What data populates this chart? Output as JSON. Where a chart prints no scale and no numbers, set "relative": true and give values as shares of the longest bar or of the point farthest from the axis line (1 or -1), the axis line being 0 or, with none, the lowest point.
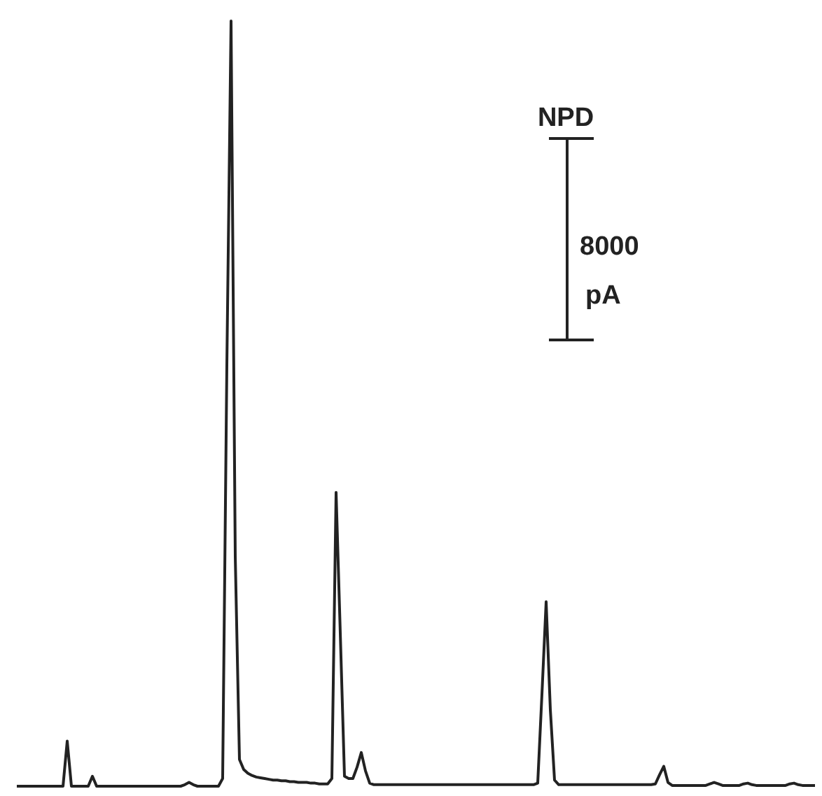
{
  "chart_data": {
    "type": "line",
    "relative": true,
    "color": "#222222",
    "annotations": [
      "NPD",
      "8000",
      "pA"
    ],
    "categories": [
      null,
      null,
      null,
      null,
      null,
      null,
      null,
      null,
      null,
      null,
      null,
      null,
      null,
      null,
      null,
      null,
      null,
      null,
      null,
      null,
      null,
      null,
      null,
      null,
      null,
      null,
      null,
      null,
      null,
      null,
      null,
      null,
      null,
      null,
      null,
      null,
      null,
      null,
      null,
      null,
      null,
      null,
      null,
      null,
      null,
      null,
      null,
      null,
      null,
      null,
      null,
      null,
      null,
      null,
      null,
      null,
      null,
      null,
      null,
      null,
      null,
      null,
      null,
      null,
      null,
      null,
      null,
      null,
      null,
      null,
      null,
      null,
      null,
      null,
      null,
      null,
      null,
      null,
      null,
      null,
      null,
      null,
      null,
      null,
      null,
      null,
      null,
      null,
      null,
      null,
      null,
      null,
      null,
      null,
      null,
      null,
      null,
      null,
      null,
      null,
      null,
      null,
      null,
      null,
      null,
      null,
      null,
      null,
      null,
      null,
      null,
      null,
      null,
      null,
      null,
      null,
      null,
      null,
      null,
      null,
      null,
      null,
      null,
      null,
      null,
      null,
      null,
      null,
      null,
      null,
      null,
      null,
      null,
      null,
      null,
      null,
      null,
      null,
      null,
      null,
      null,
      null,
      null,
      null,
      null,
      null,
      null,
      null,
      null,
      null,
      null,
      null,
      null,
      null,
      null,
      null,
      null,
      null,
      null,
      null,
      null,
      null,
      null,
      null,
      null,
      null,
      null,
      null,
      null,
      null,
      null,
      null,
      null,
      null,
      null,
      null,
      null,
      null,
      null,
      null,
      null,
      null,
      null,
      null,
      null,
      null,
      null,
      null,
      null,
      null,
      null
    ],
    "values": [
      0,
      0,
      0,
      0,
      0,
      0,
      0,
      0,
      0,
      0,
      0,
      0,
      0.059,
      0,
      0,
      0,
      0,
      0,
      0.013,
      0,
      0,
      0,
      0,
      0,
      0,
      0,
      0,
      0,
      0,
      0,
      0,
      0,
      0,
      0,
      0,
      0,
      0,
      0,
      0,
      0,
      0.002,
      0.005,
      0.002,
      0,
      0,
      0,
      0,
      0,
      0,
      0.01,
      0.55,
      1.0,
      0.3,
      0.035,
      0.022,
      0.017,
      0.014,
      0.012,
      0.011,
      0.01,
      0.009,
      0.008,
      0.008,
      0.007,
      0.007,
      0.006,
      0.006,
      0.005,
      0.005,
      0.005,
      0.004,
      0.004,
      0.003,
      0.003,
      0.003,
      0.01,
      0.384,
      0.2,
      0.013,
      0.01,
      0.01,
      0.025,
      0.044,
      0.02,
      0.004,
      0.002,
      0.002,
      0.002,
      0.002,
      0.002,
      0.002,
      0.002,
      0.002,
      0.002,
      0.002,
      0.002,
      0.002,
      0.002,
      0.002,
      0.002,
      0.002,
      0.002,
      0.002,
      0.002,
      0.002,
      0.002,
      0.002,
      0.002,
      0.002,
      0.002,
      0.002,
      0.002,
      0.002,
      0.002,
      0.002,
      0.002,
      0.002,
      0.002,
      0.002,
      0.002,
      0.002,
      0.002,
      0.002,
      0.002,
      0.004,
      0.12,
      0.241,
      0.1,
      0.008,
      0.002,
      0.002,
      0.002,
      0.002,
      0.002,
      0.002,
      0.002,
      0.002,
      0.002,
      0.002,
      0.002,
      0.002,
      0.002,
      0.002,
      0.002,
      0.002,
      0.002,
      0.002,
      0.002,
      0.002,
      0.002,
      0.002,
      0.002,
      0.003,
      0.015,
      0.026,
      0.005,
      0.001,
      0.001,
      0.001,
      0.001,
      0.001,
      0.001,
      0.001,
      0.001,
      0.001,
      0.003,
      0.005,
      0.003,
      0.001,
      0.001,
      0.001,
      0.001,
      0.001,
      0.003,
      0.004,
      0.002,
      0.001,
      0.001,
      0.001,
      0.001,
      0.001,
      0.001,
      0.001,
      0.001,
      0.003,
      0.004,
      0.002,
      0.001,
      0.001,
      0.001,
      0.001
    ]
  }
}
